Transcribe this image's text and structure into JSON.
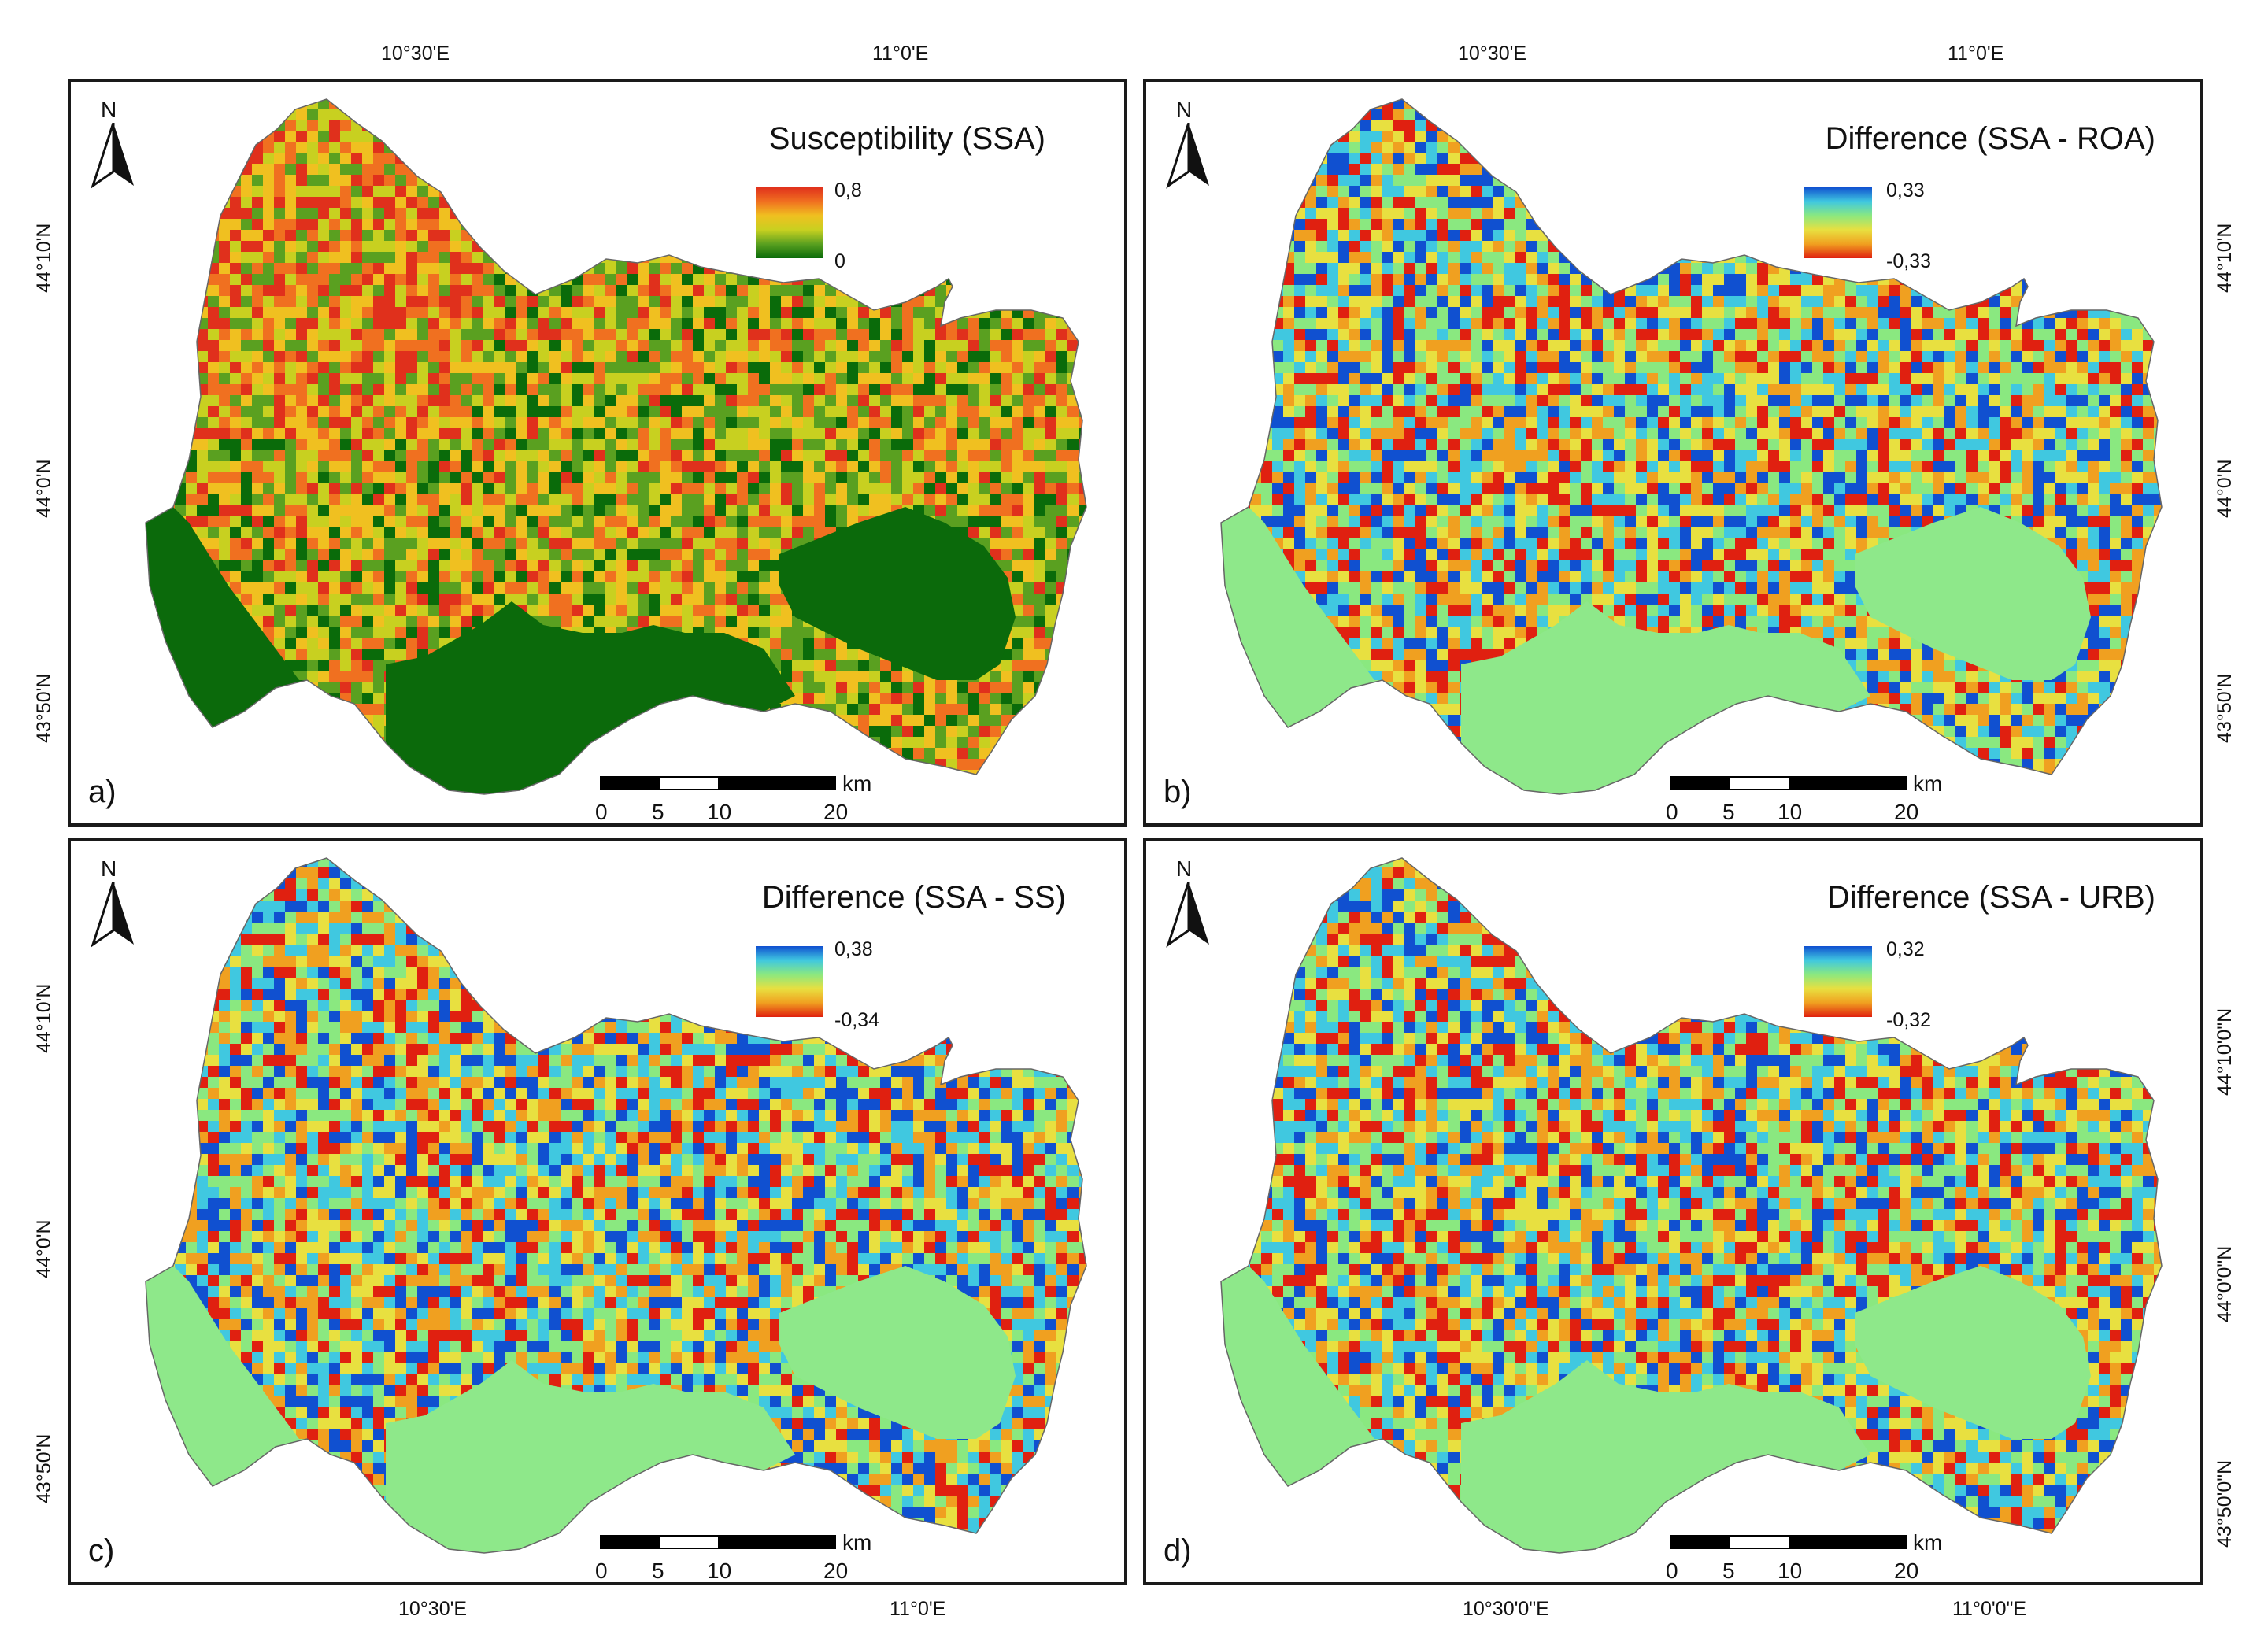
{
  "top_lon_labels": [
    "10°30'E",
    "11°0'E"
  ],
  "bottom_lon_labels_left": [
    "10°30'E",
    "11°0'E"
  ],
  "bottom_lon_labels_right": [
    "10°30'0\"E",
    "11°0'0\"E"
  ],
  "lat_labels_left": {
    "top": [
      "44°10'N",
      "44°0'N",
      "43°50'N"
    ],
    "bottom": [
      "44°10'N",
      "44°0'N",
      "43°50'N"
    ]
  },
  "lat_labels_right": {
    "top": [
      "44°10'N",
      "44°0'N",
      "43°50'N"
    ],
    "bottom": [
      "44°10'0\"N",
      "44°0'0\"N",
      "43°50'0\"N"
    ]
  },
  "panels": [
    {
      "letter": "a)",
      "title": "Susceptibility (SSA)",
      "legend_max": "0,8",
      "legend_min": "0",
      "palette": "susceptibility"
    },
    {
      "letter": "b)",
      "title": "Difference (SSA - ROA)",
      "legend_max": "0,33",
      "legend_min": "-0,33",
      "palette": "difference"
    },
    {
      "letter": "c)",
      "title": "Difference (SSA - SS)",
      "legend_max": "0,38",
      "legend_min": "-0,34",
      "palette": "difference"
    },
    {
      "letter": "d)",
      "title": "Difference (SSA - URB)",
      "legend_max": "0,32",
      "legend_min": "-0,32",
      "palette": "difference"
    }
  ],
  "north_label": "N",
  "scalebar": {
    "unit": "km",
    "ticks": [
      "0",
      "5",
      "10",
      "20"
    ]
  },
  "colors": {
    "susceptibility": [
      "#0a6b0a",
      "#5aa020",
      "#c8d020",
      "#f0c020",
      "#f07020",
      "#e0301c"
    ],
    "difference": [
      "#e02010",
      "#f0a020",
      "#e8e040",
      "#8ae880",
      "#40c8e0",
      "#1050d0"
    ],
    "flat_area_susceptibility": "#0b6a0b",
    "flat_area_difference": "#8ee88a"
  }
}
